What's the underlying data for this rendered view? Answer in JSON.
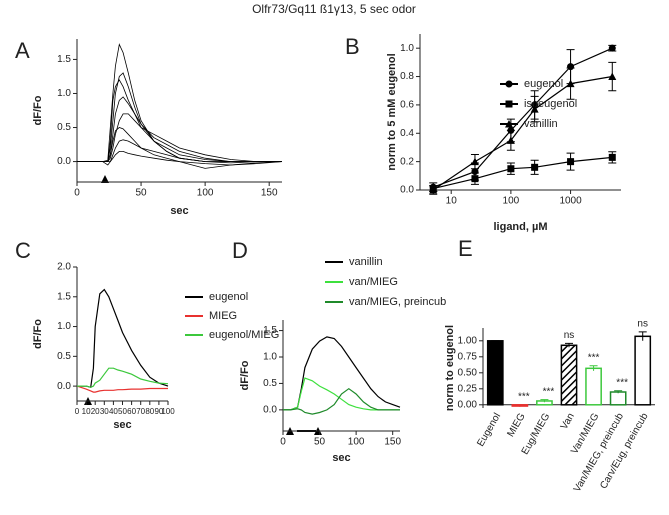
{
  "title": "Olfr73/Gq11 ß1γ13, 5 sec odor",
  "chart_data": [
    {
      "type": "line",
      "label": "A",
      "xlabel": "sec",
      "ylabel": "dF/Fo",
      "x": [
        0,
        20,
        24,
        26,
        28,
        30,
        33,
        36,
        40,
        45,
        50,
        60,
        70,
        80,
        100,
        120,
        140,
        160
      ],
      "series": [
        {
          "color": "#000000",
          "values": [
            0,
            0,
            0.02,
            0.5,
            1.0,
            1.4,
            1.72,
            1.6,
            1.3,
            0.9,
            0.6,
            0.3,
            0.15,
            0.05,
            0,
            0,
            0,
            0
          ]
        },
        {
          "color": "#000000",
          "values": [
            0,
            0,
            0,
            0.2,
            0.6,
            1.0,
            1.25,
            1.3,
            1.1,
            0.8,
            0.55,
            0.3,
            0.15,
            0.05,
            0,
            0,
            0,
            0
          ]
        },
        {
          "color": "#000000",
          "values": [
            0,
            0,
            0,
            0.3,
            0.9,
            1.1,
            1.2,
            1.1,
            0.9,
            0.7,
            0.5,
            0.3,
            0.2,
            0.1,
            0.03,
            0,
            0,
            0
          ]
        },
        {
          "color": "#000000",
          "values": [
            0,
            0,
            0,
            0.1,
            0.4,
            0.7,
            0.9,
            0.95,
            0.85,
            0.7,
            0.55,
            0.35,
            0.25,
            0.15,
            0.05,
            0,
            0,
            0
          ]
        },
        {
          "color": "#000000",
          "values": [
            0,
            0,
            0,
            0.05,
            0.2,
            0.4,
            0.6,
            0.7,
            0.7,
            0.6,
            0.5,
            0.4,
            0.3,
            0.2,
            0.1,
            0.03,
            0,
            0
          ]
        },
        {
          "color": "#000000",
          "values": [
            0,
            0,
            0,
            0.1,
            0.3,
            0.45,
            0.5,
            0.48,
            0.4,
            0.3,
            0.2,
            0.1,
            0.05,
            0,
            -0.03,
            -0.05,
            -0.03,
            0
          ]
        },
        {
          "color": "#000000",
          "values": [
            0,
            0,
            0,
            0,
            0.1,
            0.2,
            0.3,
            0.32,
            0.3,
            0.25,
            0.2,
            0.15,
            0.1,
            0.05,
            0,
            -0.02,
            0,
            0
          ]
        },
        {
          "color": "#000000",
          "values": [
            0,
            0,
            -0.05,
            0,
            0.05,
            0.1,
            0.15,
            0.15,
            0.12,
            0.1,
            0.08,
            0.05,
            0.02,
            0,
            -0.1,
            -0.05,
            -0.02,
            0
          ]
        }
      ],
      "xlim": [
        0,
        160
      ],
      "xticks": [
        0,
        50,
        100,
        150
      ],
      "ylim": [
        -0.3,
        1.8
      ],
      "yticks": [
        {
          "value": 0,
          "label": "0.0"
        },
        0.5,
        {
          "value": 1,
          "label": "1.0"
        },
        1.5
      ]
    },
    {
      "type": "line",
      "label": "B",
      "xlabel": "ligand, µM",
      "ylabel": "norm to 5 mM eugenol",
      "xscale": "log",
      "legend": "upper center",
      "x": [
        5,
        25,
        100,
        250,
        1000,
        5000
      ],
      "series": [
        {
          "name": "eugenol",
          "color": "#000000",
          "marker": "circle",
          "values": [
            0.02,
            0.13,
            0.42,
            0.6,
            0.87,
            1.0
          ],
          "errors": [
            0.03,
            0.06,
            0.08,
            0.1,
            0.12,
            0.02
          ]
        },
        {
          "name": "isoeugenol",
          "color": "#000000",
          "marker": "square",
          "values": [
            0.01,
            0.08,
            0.15,
            0.16,
            0.2,
            0.23
          ],
          "errors": [
            0.02,
            0.04,
            0.04,
            0.05,
            0.06,
            0.04
          ]
        },
        {
          "name": "vanillin",
          "color": "#000000",
          "marker": "triangle",
          "values": [
            0.0,
            0.2,
            0.35,
            0.57,
            0.75,
            0.8
          ],
          "errors": [
            0.03,
            0.05,
            0.07,
            0.09,
            0.11,
            0.1
          ]
        }
      ],
      "xlim": [
        3,
        7000
      ],
      "xticks": [
        10,
        100,
        1000
      ],
      "ylim": [
        0,
        1.1
      ],
      "yticks": [
        {
          "value": 0,
          "label": "0.0"
        },
        0.2,
        0.4,
        0.6,
        0.8,
        {
          "value": 1,
          "label": "1.0"
        }
      ]
    },
    {
      "type": "line",
      "label": "C",
      "xlabel": "sec",
      "ylabel": "dF/Fo",
      "legend": "outside right",
      "x": [
        0,
        10,
        15,
        18,
        20,
        25,
        30,
        35,
        40,
        45,
        50,
        60,
        70,
        80,
        90,
        100
      ],
      "series": [
        {
          "name": "eugenol",
          "color": "#000000",
          "values": [
            0,
            0,
            -0.02,
            0.3,
            1.0,
            1.55,
            1.62,
            1.5,
            1.3,
            1.1,
            0.9,
            0.6,
            0.35,
            0.15,
            0.05,
            0
          ]
        },
        {
          "name": "MIEG",
          "color": "#e8312f",
          "values": [
            0,
            -0.05,
            -0.08,
            -0.1,
            -0.1,
            -0.08,
            -0.07,
            -0.07,
            -0.07,
            -0.06,
            -0.06,
            -0.05,
            -0.05,
            -0.04,
            -0.04,
            -0.04
          ]
        },
        {
          "name": "eugenol/MIEG",
          "color": "#3cc83c",
          "values": [
            0,
            0,
            -0.02,
            0,
            0.05,
            0.1,
            0.2,
            0.3,
            0.3,
            0.27,
            0.25,
            0.2,
            0.12,
            0.08,
            0.05,
            0.04
          ]
        }
      ],
      "xlim": [
        0,
        100
      ],
      "xticks": [
        0,
        10,
        20,
        30,
        40,
        50,
        60,
        70,
        80,
        90,
        100
      ],
      "ylim": [
        -0.25,
        2.0
      ],
      "yticks": [
        {
          "value": 0,
          "label": "0.0"
        },
        0.5,
        {
          "value": 1,
          "label": "1.0"
        },
        1.5,
        {
          "value": 2,
          "label": "2.0"
        }
      ]
    },
    {
      "type": "line",
      "label": "D",
      "xlabel": "sec",
      "ylabel": "dF/Fo",
      "legend": "outside right",
      "x": [
        0,
        10,
        20,
        25,
        30,
        40,
        50,
        60,
        70,
        80,
        90,
        100,
        110,
        120,
        130,
        140,
        150,
        160
      ],
      "series": [
        {
          "name": "vanillin",
          "color": "#000000",
          "values": [
            0,
            0,
            0.05,
            0.4,
            0.8,
            1.15,
            1.3,
            1.38,
            1.35,
            1.2,
            1.0,
            0.8,
            0.6,
            0.4,
            0.25,
            0.15,
            0.1,
            0.05
          ]
        },
        {
          "name": "van/MIEG",
          "color": "#3ee03e",
          "values": [
            0,
            0,
            0.05,
            0.35,
            0.6,
            0.55,
            0.45,
            0.38,
            0.3,
            0.2,
            0.1,
            0.05,
            0.02,
            0,
            0,
            0,
            0,
            0
          ]
        },
        {
          "name": "van/MIEG, preincub",
          "color": "#1f8a2a",
          "values": [
            0,
            0,
            0.02,
            0,
            -0.05,
            -0.08,
            -0.05,
            0,
            0.1,
            0.3,
            0.4,
            0.3,
            0.15,
            0.05,
            0,
            0,
            0,
            0
          ]
        }
      ],
      "xlim": [
        0,
        160
      ],
      "xticks": [
        0,
        50,
        100,
        150
      ],
      "ylim": [
        -0.4,
        1.7
      ],
      "yticks": [
        {
          "value": 0,
          "label": "0.0"
        },
        0.5,
        {
          "value": 1,
          "label": "1.0"
        },
        1.5
      ]
    },
    {
      "type": "bar",
      "label": "E",
      "ylabel": "norm to eugenol",
      "categories": [
        "Eugenol",
        "MIEG",
        "Eug/MIEG",
        "Van",
        "Van/MIEG",
        "Van/MIEG, preincub",
        "Carv/Eug, preincub"
      ],
      "values": [
        1.0,
        -0.02,
        0.06,
        0.93,
        0.57,
        0.2,
        1.07
      ],
      "errors": [
        0,
        0.01,
        0.02,
        0.03,
        0.04,
        0.02,
        0.07
      ],
      "annotations": [
        null,
        "***",
        "***",
        "ns",
        "***",
        "***",
        "ns"
      ],
      "colors": [
        "#000000",
        "#e8312f",
        "#3cc83c",
        "#000000",
        "#3cc83c",
        "#1f8a2a",
        "#000000"
      ],
      "fills": [
        "#000000",
        "#e8312f",
        "#ffffff",
        "hatch",
        "#ffffff",
        "#ffffff",
        "#ffffff"
      ],
      "ylim": [
        -0.05,
        1.2
      ],
      "yticks": [
        {
          "value": 0,
          "label": "0.00"
        },
        0.25,
        {
          "value": 0.5,
          "label": "0.50"
        },
        0.75,
        {
          "value": 1,
          "label": "1.00"
        }
      ]
    }
  ]
}
